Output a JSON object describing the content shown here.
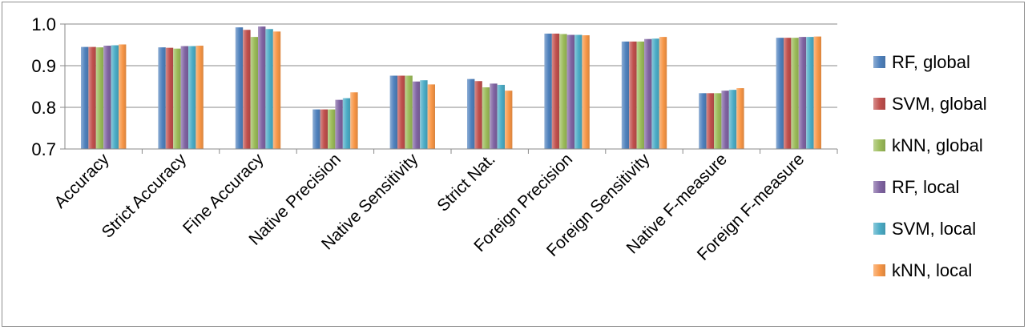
{
  "chart_data": {
    "type": "bar",
    "title": "",
    "xlabel": "",
    "ylabel": "",
    "ylim": [
      0.7,
      1.0
    ],
    "yticks": [
      "0.7",
      "0.8",
      "0.9",
      "1.0"
    ],
    "grid": true,
    "legend_position": "right",
    "categories": [
      "Accuracy",
      "Strict Accuracy",
      "Fine Accuracy",
      "Native Precision",
      "Native Sensitivity",
      "Strict Nat.",
      "Foreign Precision",
      "Foreign Sensitivity",
      "Native F-measure",
      "Foreign F-measure"
    ],
    "series": [
      {
        "name": "RF, global",
        "color": "#4f81bd",
        "values": [
          0.945,
          0.944,
          0.992,
          0.795,
          0.876,
          0.868,
          0.977,
          0.958,
          0.834,
          0.967
        ]
      },
      {
        "name": "SVM, global",
        "color": "#c0504d",
        "values": [
          0.945,
          0.943,
          0.986,
          0.795,
          0.876,
          0.863,
          0.977,
          0.958,
          0.834,
          0.967
        ]
      },
      {
        "name": "kNN, global",
        "color": "#9bbb59",
        "values": [
          0.944,
          0.941,
          0.969,
          0.795,
          0.876,
          0.848,
          0.976,
          0.958,
          0.834,
          0.967
        ]
      },
      {
        "name": "RF, local",
        "color": "#8064a2",
        "values": [
          0.948,
          0.947,
          0.994,
          0.818,
          0.862,
          0.857,
          0.974,
          0.964,
          0.84,
          0.969
        ]
      },
      {
        "name": "SVM, local",
        "color": "#4bacc6",
        "values": [
          0.949,
          0.947,
          0.988,
          0.822,
          0.865,
          0.854,
          0.974,
          0.965,
          0.842,
          0.969
        ]
      },
      {
        "name": "kNN, local",
        "color": "#f79646",
        "values": [
          0.951,
          0.948,
          0.982,
          0.836,
          0.855,
          0.84,
          0.973,
          0.969,
          0.846,
          0.97
        ]
      }
    ]
  }
}
